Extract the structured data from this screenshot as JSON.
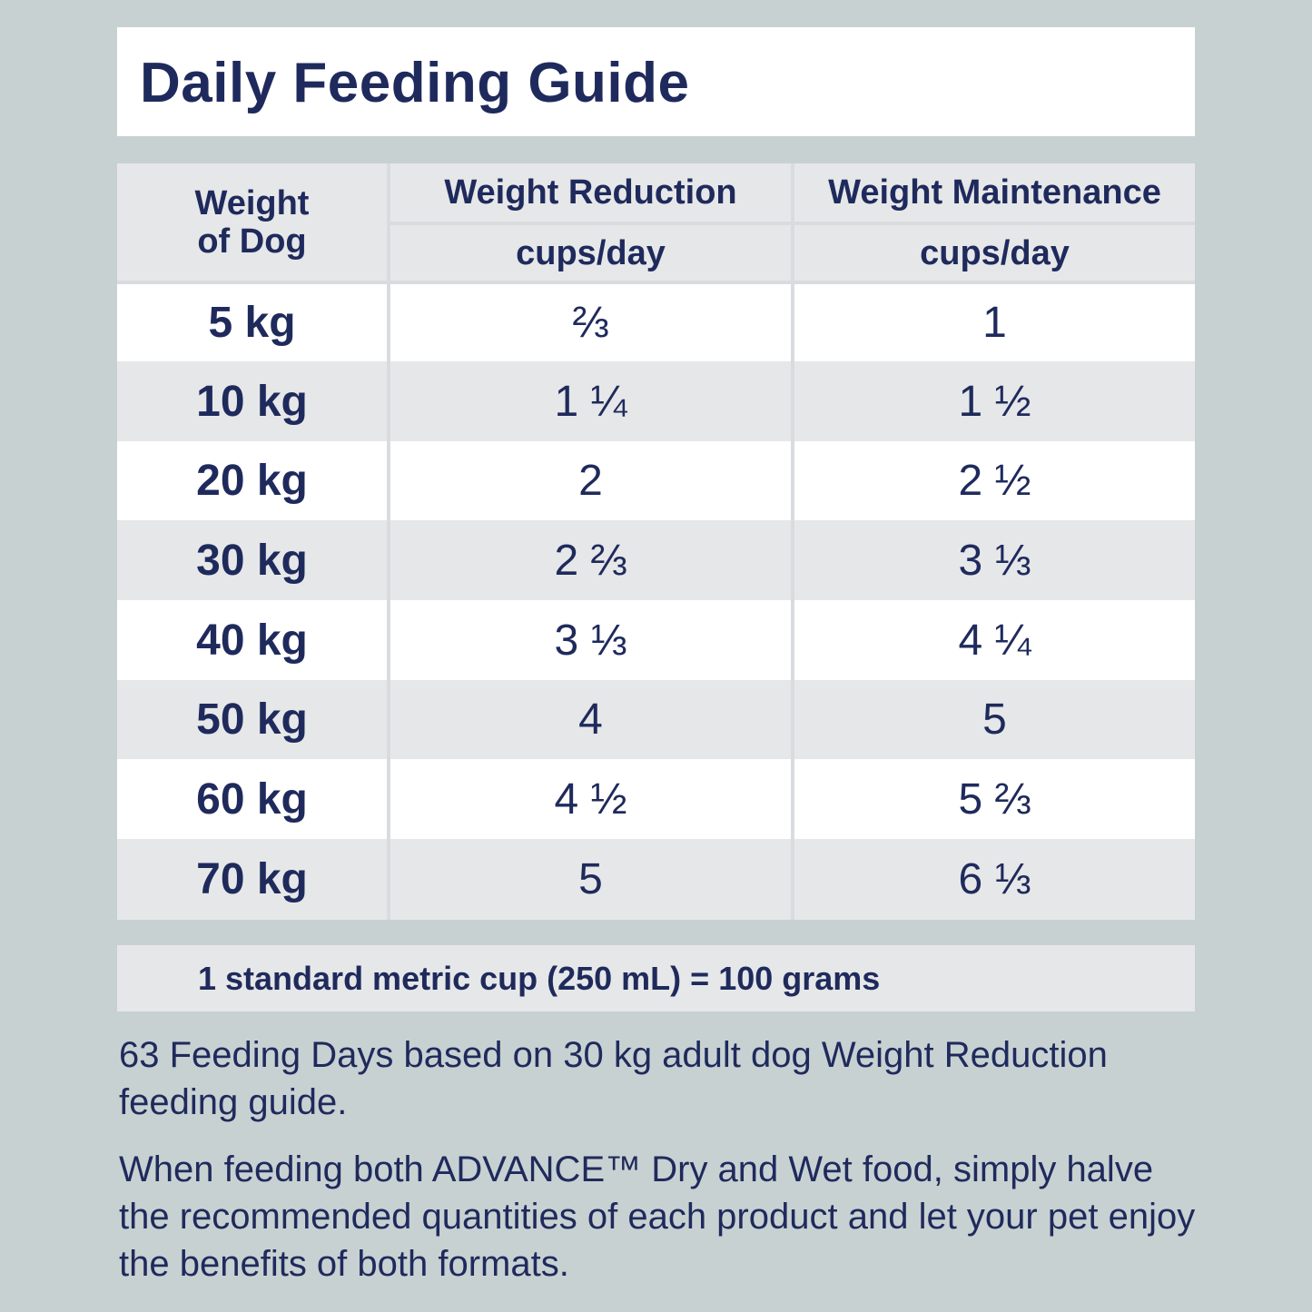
{
  "title": "Daily Feeding Guide",
  "table": {
    "header": {
      "weight": "Weight of Dog",
      "reduction": "Weight Reduction",
      "maintenance": "Weight Maintenance",
      "reduction_unit": "cups/day",
      "maintenance_unit": "cups/day"
    },
    "rows": [
      {
        "weight": "5 kg",
        "reduction": "⅔",
        "maintenance": "1"
      },
      {
        "weight": "10 kg",
        "reduction": "1 ¼",
        "maintenance": "1 ½"
      },
      {
        "weight": "20 kg",
        "reduction": "2",
        "maintenance": "2 ½"
      },
      {
        "weight": "30 kg",
        "reduction": "2 ⅔",
        "maintenance": "3 ⅓"
      },
      {
        "weight": "40 kg",
        "reduction": "3 ⅓",
        "maintenance": "4 ¼"
      },
      {
        "weight": "50 kg",
        "reduction": "4",
        "maintenance": "5"
      },
      {
        "weight": "60 kg",
        "reduction": "4 ½",
        "maintenance": "5 ⅔"
      },
      {
        "weight": "70 kg",
        "reduction": "5",
        "maintenance": "6 ⅓"
      }
    ]
  },
  "note": "1 standard metric cup (250 mL) = 100 grams",
  "paragraphs": [
    "63 Feeding Days based on 30 kg adult dog Weight Reduction feeding guide.",
    "When feeding both ADVANCE™ Dry and Wet food, simply halve the recommended quantities of each product and let your pet enjoy the benefits of both formats."
  ],
  "colors": {
    "background": "#c8d1d2",
    "text": "#1f2a5c",
    "row_alt": "#e6e7e8",
    "row": "#ffffff"
  }
}
